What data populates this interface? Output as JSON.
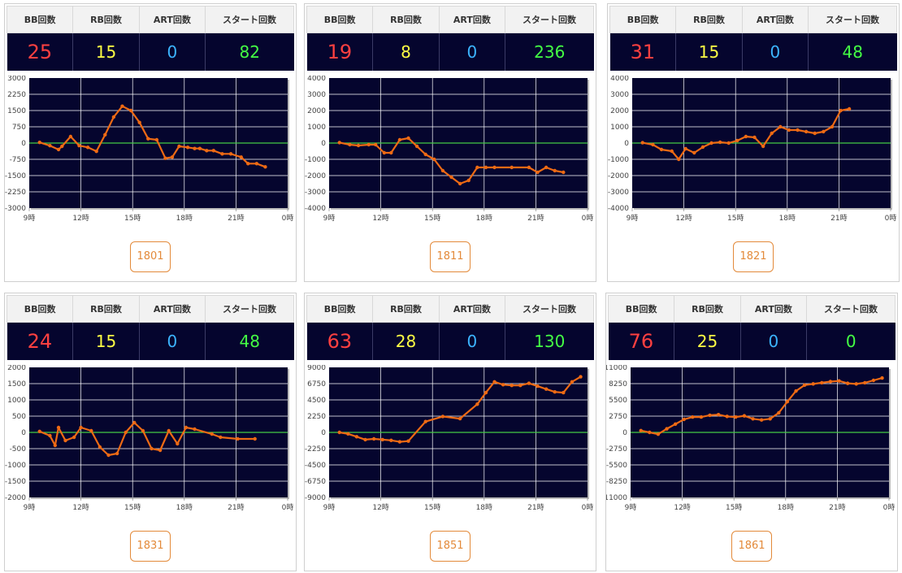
{
  "headers": {
    "bb": "BB回数",
    "rb": "RB回数",
    "art": "ART回数",
    "start": "スタート回数"
  },
  "colors": {
    "plot_bg": "#05052e",
    "line": "#ee6a14",
    "zero_line": "#44cc44",
    "grid": "#ffffff",
    "bb": "#ff4040",
    "rb": "#ffff44",
    "art": "#3cb4ff",
    "start": "#44ff44",
    "button": "#e38a3a"
  },
  "machines": [
    {
      "number": "1801",
      "bb": "25",
      "rb": "15",
      "art": "0",
      "start": "82"
    },
    {
      "number": "1811",
      "bb": "19",
      "rb": "8",
      "art": "0",
      "start": "236"
    },
    {
      "number": "1821",
      "bb": "31",
      "rb": "15",
      "art": "0",
      "start": "48"
    },
    {
      "number": "1831",
      "bb": "24",
      "rb": "15",
      "art": "0",
      "start": "48"
    },
    {
      "number": "1851",
      "bb": "63",
      "rb": "28",
      "art": "0",
      "start": "130"
    },
    {
      "number": "1861",
      "bb": "76",
      "rb": "25",
      "art": "0",
      "start": "0"
    }
  ],
  "chart_data": [
    {
      "type": "line",
      "x_ticks": [
        "9時",
        "12時",
        "15時",
        "18時",
        "21時",
        "0時"
      ],
      "xlim": [
        9,
        24
      ],
      "y_ticks": [
        "3000",
        "2250",
        "1500",
        "750",
        "0",
        "-750",
        "-1500",
        "-2250",
        "-3000"
      ],
      "ylim": [
        -3000,
        3000
      ],
      "x": [
        9.6,
        10.2,
        10.7,
        10.9,
        11.4,
        11.9,
        12.4,
        12.9,
        13.4,
        13.9,
        14.4,
        14.9,
        15.4,
        15.9,
        16.4,
        16.9,
        17.3,
        17.7,
        18.2,
        18.6,
        18.9,
        19.3,
        19.7,
        20.2,
        20.7,
        21.3,
        21.7,
        22.2,
        22.7
      ],
      "y": [
        30,
        -120,
        -300,
        -150,
        300,
        -120,
        -200,
        -380,
        380,
        1200,
        1700,
        1500,
        950,
        200,
        150,
        -700,
        -650,
        -150,
        -200,
        -250,
        -250,
        -350,
        -350,
        -500,
        -500,
        -650,
        -950,
        -950,
        -1100
      ]
    },
    {
      "type": "line",
      "x_ticks": [
        "9時",
        "12時",
        "15時",
        "18時",
        "21時",
        "0時"
      ],
      "xlim": [
        9,
        24
      ],
      "y_ticks": [
        "4000",
        "3000",
        "2000",
        "1000",
        "0",
        "-1000",
        "-2000",
        "-3000",
        "-4000"
      ],
      "ylim": [
        -4000,
        4000
      ],
      "x": [
        9.6,
        10.2,
        10.7,
        11.3,
        11.7,
        12.2,
        12.6,
        13.1,
        13.6,
        14.1,
        14.6,
        15.1,
        15.6,
        16.1,
        16.6,
        17.1,
        17.6,
        18.1,
        18.6,
        19.6,
        20.6,
        21.1,
        21.6,
        22.1,
        22.6
      ],
      "y": [
        30,
        -100,
        -150,
        -100,
        -100,
        -600,
        -600,
        200,
        300,
        -200,
        -700,
        -1000,
        -1700,
        -2100,
        -2500,
        -2300,
        -1500,
        -1500,
        -1500,
        -1500,
        -1500,
        -1800,
        -1500,
        -1700,
        -1800
      ]
    },
    {
      "type": "line",
      "x_ticks": [
        "9時",
        "12時",
        "15時",
        "18時",
        "21時",
        "0時"
      ],
      "xlim": [
        9,
        24
      ],
      "y_ticks": [
        "4000",
        "3000",
        "2000",
        "1000",
        "0",
        "-1000",
        "-2000",
        "-3000",
        "-4000"
      ],
      "ylim": [
        -4000,
        4000
      ],
      "x": [
        9.6,
        10.2,
        10.7,
        11.3,
        11.7,
        12.1,
        12.6,
        13.1,
        13.6,
        14.1,
        14.6,
        15.1,
        15.6,
        16.1,
        16.6,
        17.1,
        17.6,
        18.1,
        18.6,
        19.1,
        19.6,
        20.1,
        20.6,
        21.1,
        21.6
      ],
      "y": [
        20,
        -100,
        -400,
        -500,
        -1000,
        -350,
        -600,
        -250,
        0,
        50,
        0,
        150,
        400,
        350,
        -200,
        600,
        1000,
        800,
        800,
        700,
        600,
        700,
        1000,
        2000,
        2100
      ]
    },
    {
      "type": "line",
      "x_ticks": [
        "9時",
        "12時",
        "15時",
        "18時",
        "21時",
        "0時"
      ],
      "xlim": [
        9,
        24
      ],
      "y_ticks": [
        "2000",
        "1500",
        "1000",
        "500",
        "0",
        "-500",
        "-1000",
        "-1500",
        "-2000"
      ],
      "ylim": [
        -2000,
        2000
      ],
      "x": [
        9.6,
        10.2,
        10.5,
        10.7,
        11.1,
        11.6,
        12.0,
        12.6,
        13.1,
        13.6,
        14.1,
        14.6,
        15.1,
        15.6,
        16.1,
        16.6,
        17.1,
        17.6,
        18.1,
        18.6,
        19.6,
        20.1,
        21.1,
        22.1
      ],
      "y": [
        30,
        -100,
        -400,
        150,
        -250,
        -150,
        150,
        50,
        -450,
        -700,
        -650,
        0,
        300,
        50,
        -500,
        -550,
        50,
        -350,
        150,
        100,
        -50,
        -150,
        -200,
        -200
      ]
    },
    {
      "type": "line",
      "x_ticks": [
        "9時",
        "12時",
        "15時",
        "18時",
        "21時",
        "0時"
      ],
      "xlim": [
        9,
        24
      ],
      "y_ticks": [
        "9000",
        "6750",
        "4500",
        "2250",
        "0",
        "-2250",
        "-4500",
        "-6750",
        "-9000"
      ],
      "ylim": [
        -9000,
        9000
      ],
      "x": [
        9.6,
        10.1,
        10.6,
        11.1,
        11.6,
        12.1,
        12.6,
        13.1,
        13.6,
        14.6,
        15.6,
        16.6,
        17.6,
        18.1,
        18.6,
        19.1,
        19.6,
        20.1,
        20.6,
        21.1,
        21.6,
        22.1,
        22.6,
        23.1,
        23.6
      ],
      "y": [
        0,
        -200,
        -600,
        -1000,
        -900,
        -1000,
        -1100,
        -1300,
        -1200,
        1500,
        2200,
        1900,
        3900,
        5500,
        7000,
        6600,
        6500,
        6500,
        6800,
        6400,
        6000,
        5600,
        5500,
        7000,
        7700
      ]
    },
    {
      "type": "line",
      "x_ticks": [
        "9時",
        "12時",
        "15時",
        "18時",
        "21時",
        "0時"
      ],
      "xlim": [
        9,
        24
      ],
      "y_ticks": [
        "11000",
        "8250",
        "5500",
        "2750",
        "0",
        "-2750",
        "-5500",
        "-8250",
        "-11000"
      ],
      "ylim": [
        -11000,
        11000
      ],
      "x": [
        9.6,
        10.1,
        10.6,
        11.1,
        11.6,
        12.1,
        12.6,
        13.1,
        13.6,
        14.1,
        14.6,
        15.1,
        15.6,
        16.1,
        16.6,
        17.1,
        17.6,
        18.1,
        18.6,
        19.1,
        19.6,
        20.1,
        20.6,
        21.1,
        21.6,
        22.1,
        22.6,
        23.1,
        23.6
      ],
      "y": [
        300,
        0,
        -300,
        600,
        1400,
        2200,
        2600,
        2600,
        2900,
        3000,
        2700,
        2600,
        2800,
        2300,
        2100,
        2300,
        3300,
        5200,
        7000,
        8000,
        8200,
        8400,
        8600,
        8700,
        8300,
        8200,
        8400,
        8800,
        9200
      ]
    }
  ]
}
